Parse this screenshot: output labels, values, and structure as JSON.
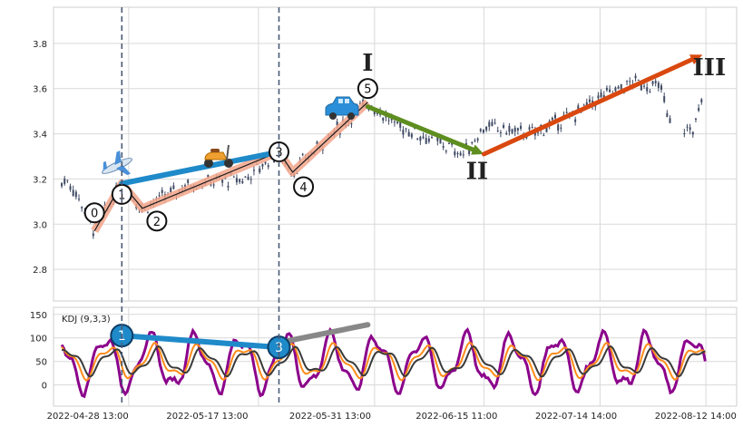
{
  "chart_data": [
    {
      "type": "candlestick",
      "panel": "price",
      "ylim": [
        2.66,
        3.96
      ],
      "yticks": [
        "2.8",
        "3.0",
        "3.2",
        "3.4",
        "3.6",
        "3.8"
      ],
      "grid": true,
      "candle_color": "#3f4a63",
      "path_points": [
        {
          "label": "0",
          "x": 0.06,
          "y": 2.97
        },
        {
          "label": "1",
          "x": 0.1,
          "y": 3.18
        },
        {
          "label": "2",
          "x": 0.13,
          "y": 3.07
        },
        {
          "label": "3",
          "x": 0.33,
          "y": 3.32
        },
        {
          "label": "4",
          "x": 0.35,
          "y": 3.23
        },
        {
          "label": "5",
          "x": 0.46,
          "y": 3.54
        }
      ],
      "wave_labels": [
        {
          "label": "I",
          "x": 0.46,
          "y": 3.68
        },
        {
          "label": "II",
          "x": 0.62,
          "y": 3.2
        },
        {
          "label": "III",
          "x": 0.96,
          "y": 3.66
        }
      ],
      "arrows": [
        {
          "from": [
            0.1,
            3.18
          ],
          "to": [
            0.33,
            3.32
          ],
          "color": "#1f8ac9"
        },
        {
          "from": [
            0.46,
            3.52
          ],
          "to": [
            0.63,
            3.31
          ],
          "color": "#5e8e1f"
        },
        {
          "from": [
            0.63,
            3.31
          ],
          "to": [
            0.95,
            3.75
          ],
          "color": "#d9480f"
        }
      ],
      "vlines_x": [
        0.1,
        0.33
      ]
    },
    {
      "type": "line",
      "panel": "indicator",
      "title": "KDJ (9,3,3)",
      "ylim": [
        -45,
        165
      ],
      "yticks": [
        "0",
        "50",
        "100",
        "150"
      ],
      "series_colors": [
        "#8b008b",
        "#ff8c1a",
        "#3a3a3a"
      ],
      "markers": [
        {
          "label": "1",
          "x": 0.1,
          "y": 105
        },
        {
          "label": "3",
          "x": 0.33,
          "y": 80
        }
      ],
      "arrows": [
        {
          "from": [
            0.1,
            105
          ],
          "to": [
            0.33,
            80
          ],
          "color": "#1f8ac9"
        },
        {
          "from": [
            0.33,
            90
          ],
          "to": [
            0.46,
            128
          ],
          "color": "#888888"
        }
      ]
    }
  ],
  "x_axis": {
    "labels": [
      "2022-04-28 13:00",
      "2022-05-17 13:00",
      "2022-05-31 13:00",
      "2022-06-15 11:00",
      "2022-07-14 14:00",
      "2022-08-12 14:00"
    ],
    "positions": [
      0.05,
      0.225,
      0.405,
      0.59,
      0.765,
      0.94
    ]
  },
  "colors": {
    "vline": "#4a5a75",
    "pathfill": "#f2a58a",
    "pathline": "#1a1a1a",
    "kline": "#8b008b",
    "dline": "#ff8c1a",
    "jline": "#3a3a3a"
  }
}
